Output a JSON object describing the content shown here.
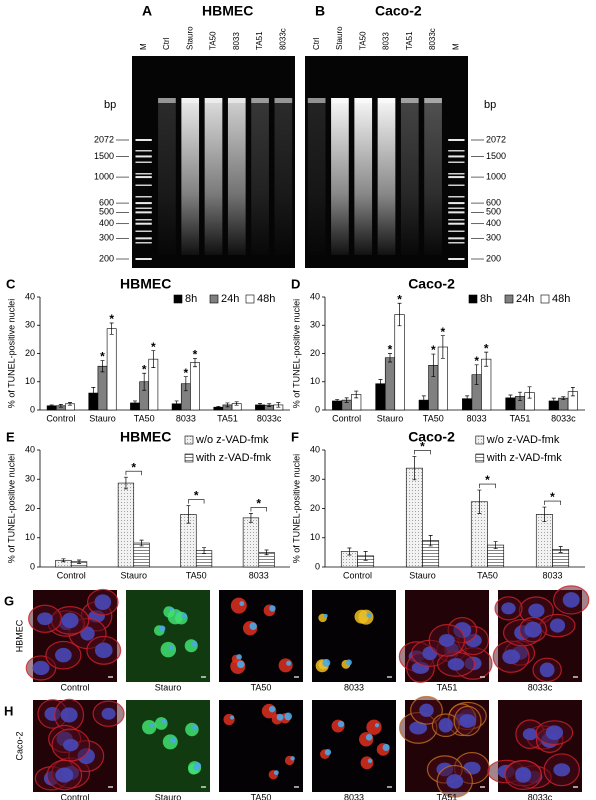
{
  "gels": [
    {
      "panel": "A",
      "title": "HBMEC",
      "lanes": [
        "M",
        "Ctrl",
        "Stauro",
        "TA50",
        "8033",
        "TA51",
        "8033c"
      ],
      "unit": "bp",
      "markers": [
        2072,
        1500,
        1000,
        600,
        500,
        400,
        300,
        200
      ]
    },
    {
      "panel": "B",
      "title": "Caco-2",
      "lanes": [
        "Ctrl",
        "Stauro",
        "TA50",
        "8033",
        "TA51",
        "8033c",
        "M"
      ],
      "unit": "bp",
      "markers": [
        2072,
        1500,
        1000,
        600,
        500,
        400,
        300,
        200
      ]
    }
  ],
  "chart_data": [
    {
      "type": "bar",
      "panel": "C",
      "title": "HBMEC",
      "y_label": "% of TUNEL-positive nuclei",
      "categories": [
        "Control",
        "Stauro",
        "TA50",
        "8033",
        "TA51",
        "8033c"
      ],
      "series": [
        {
          "name": "8h",
          "color": "#000000",
          "values": [
            1.5,
            6,
            2.5,
            2.2,
            1,
            1.8
          ],
          "errors": [
            0.3,
            2,
            0.7,
            1,
            0.3,
            0.5
          ]
        },
        {
          "name": "24h",
          "color": "#808080",
          "values": [
            1.5,
            15.5,
            10,
            9.3,
            1.8,
            1.7
          ],
          "errors": [
            0.5,
            2,
            3,
            2.5,
            0.7,
            0.5
          ]
        },
        {
          "name": "48h",
          "color": "#ffffff",
          "values": [
            2.2,
            28.8,
            18,
            16.8,
            2.3,
            1.8
          ],
          "errors": [
            0.5,
            2,
            3,
            1.5,
            0.6,
            0.8
          ]
        }
      ],
      "ylim": [
        0,
        40
      ],
      "yticks": [
        0,
        10,
        20,
        30,
        40
      ],
      "legend": "top-right",
      "stars": [
        {
          "series": 1,
          "category": 1,
          "text": "*"
        },
        {
          "series": 2,
          "category": 1,
          "text": "*"
        },
        {
          "series": 1,
          "category": 2,
          "text": "*"
        },
        {
          "series": 2,
          "category": 2,
          "text": "*"
        },
        {
          "series": 1,
          "category": 3,
          "text": "*"
        },
        {
          "series": 2,
          "category": 3,
          "text": "*"
        }
      ]
    },
    {
      "type": "bar",
      "panel": "D",
      "title": "Caco-2",
      "y_label": "% of TUNEL-positive nuclei",
      "categories": [
        "Control",
        "Stauro",
        "TA50",
        "8033",
        "TA51",
        "8033c"
      ],
      "series": [
        {
          "name": "8h",
          "color": "#000000",
          "values": [
            3.2,
            9.3,
            3.5,
            4,
            4.3,
            3.2
          ],
          "errors": [
            0.5,
            1.5,
            1.5,
            1,
            1,
            1
          ]
        },
        {
          "name": "24h",
          "color": "#808080",
          "values": [
            3.5,
            18.5,
            15.8,
            12.5,
            4.8,
            4.2
          ],
          "errors": [
            0.8,
            1.5,
            4,
            3.5,
            1.5,
            0.5
          ]
        },
        {
          "name": "48h",
          "color": "#ffffff",
          "values": [
            5.5,
            33.8,
            22.3,
            18,
            6.2,
            6.5
          ],
          "errors": [
            1.2,
            4,
            4,
            2.5,
            2,
            1.5
          ]
        }
      ],
      "ylim": [
        0,
        40
      ],
      "yticks": [
        0,
        10,
        20,
        30,
        40
      ],
      "legend": "top-right",
      "stars": [
        {
          "series": 1,
          "category": 1,
          "text": "*"
        },
        {
          "series": 2,
          "category": 1,
          "text": "*"
        },
        {
          "series": 1,
          "category": 2,
          "text": "*"
        },
        {
          "series": 2,
          "category": 2,
          "text": "*"
        },
        {
          "series": 1,
          "category": 3,
          "text": "*"
        },
        {
          "series": 2,
          "category": 3,
          "text": "*"
        }
      ]
    },
    {
      "type": "bar",
      "panel": "E",
      "title": "HBMEC",
      "y_label": "% of TUNEL-positive nuclei",
      "categories": [
        "Control",
        "Stauro",
        "TA50",
        "8033"
      ],
      "series": [
        {
          "name": "w/o z-VAD-fmk",
          "color": "#f2f2f2",
          "pattern": "dots",
          "values": [
            2.3,
            28.7,
            18,
            16.8
          ],
          "errors": [
            0.5,
            2,
            3,
            1.5
          ]
        },
        {
          "name": "with z-VAD-fmk",
          "color": "#ffffff",
          "pattern": "stripes",
          "values": [
            1.8,
            8.2,
            5.6,
            5
          ],
          "errors": [
            0.6,
            1,
            1,
            0.8
          ]
        }
      ],
      "ylim": [
        0,
        40
      ],
      "yticks": [
        0,
        10,
        20,
        30,
        40
      ],
      "legend": "top-right",
      "stars": [
        {
          "category": 1,
          "text": "*"
        },
        {
          "category": 2,
          "text": "*"
        },
        {
          "category": 3,
          "text": "*"
        }
      ]
    },
    {
      "type": "bar",
      "panel": "F",
      "title": "Caco-2",
      "y_label": "% of TUNEL-positive nuclei",
      "categories": [
        "Control",
        "Stauro",
        "TA50",
        "8033"
      ],
      "series": [
        {
          "name": "w/o z-VAD-fmk",
          "color": "#f2f2f2",
          "pattern": "dots",
          "values": [
            5.3,
            33.8,
            22.3,
            18
          ],
          "errors": [
            1.2,
            4,
            4,
            2.5
          ]
        },
        {
          "name": "with z-VAD-fmk",
          "color": "#ffffff",
          "pattern": "stripes",
          "values": [
            3.8,
            9,
            7.5,
            6
          ],
          "errors": [
            1.5,
            1.8,
            1.2,
            1
          ]
        }
      ],
      "ylim": [
        0,
        40
      ],
      "yticks": [
        0,
        10,
        20,
        30,
        40
      ],
      "legend": "top-right",
      "stars": [
        {
          "category": 1,
          "text": "*"
        },
        {
          "category": 2,
          "text": "*"
        },
        {
          "category": 3,
          "text": "*"
        }
      ]
    }
  ],
  "micrographs": [
    {
      "panel": "G",
      "label": "HBMEC",
      "images": [
        "Control",
        "Stauro",
        "TA50",
        "8033",
        "TA51",
        "8033c"
      ]
    },
    {
      "panel": "H",
      "label": "Caco-2",
      "images": [
        "Control",
        "Stauro",
        "TA50",
        "8033",
        "TA51",
        "8033c"
      ]
    }
  ]
}
